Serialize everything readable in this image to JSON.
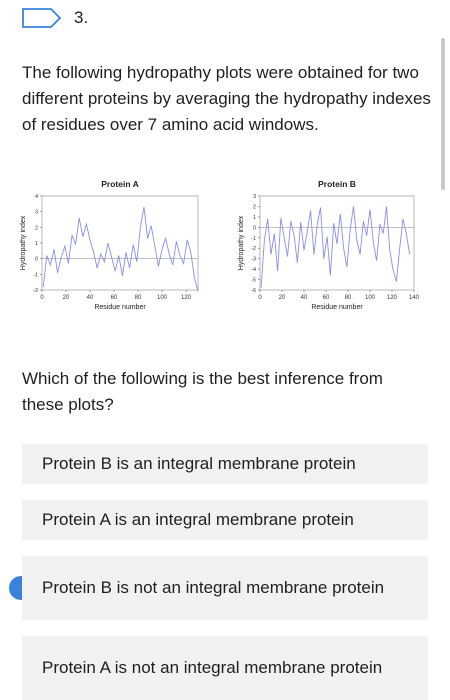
{
  "question": {
    "number": "3.",
    "text": "The following hydropathy plots were obtained for two different proteins by averaging the hydropathy indexes of residues over 7 amino acid windows.",
    "prompt": "Which of the following is the best inference from these plots?"
  },
  "options": [
    {
      "label": "Protein B is an integral membrane protein",
      "selected": false
    },
    {
      "label": "Protein A is an integral membrane protein",
      "selected": false
    },
    {
      "label": "Protein B is not an integral membrane protein",
      "selected": true
    },
    {
      "label": "Protein A is not an integral membrane protein",
      "selected": false
    }
  ],
  "colors": {
    "accent": "#3b82dc",
    "option_bg": "#f1f1f1",
    "plot_line": "#8a8fe6"
  },
  "chart_data": [
    {
      "type": "line",
      "title": "Protein A",
      "xlabel": "Residue number",
      "ylabel": "Hydropathy index",
      "xlim": [
        0,
        130
      ],
      "ylim": [
        -2,
        4
      ],
      "x_ticks": [
        "0",
        "20",
        "40",
        "60",
        "80",
        "100",
        "120"
      ],
      "y_ticks": [
        "4",
        "3",
        "2",
        "1",
        "0",
        "-1",
        "-2"
      ],
      "x": [
        1,
        4,
        7,
        10,
        13,
        16,
        19,
        22,
        25,
        28,
        31,
        34,
        37,
        40,
        43,
        46,
        49,
        52,
        55,
        58,
        61,
        64,
        67,
        70,
        73,
        76,
        79,
        82,
        85,
        88,
        91,
        94,
        97,
        100,
        103,
        106,
        109,
        112,
        115,
        118,
        121,
        124,
        127,
        130
      ],
      "values": [
        -1.8,
        0.2,
        -0.4,
        0.6,
        -0.9,
        0.1,
        0.8,
        -0.3,
        1.5,
        0.9,
        2.6,
        1.4,
        2.2,
        1.2,
        0.4,
        -0.6,
        0.3,
        -0.2,
        1.0,
        0.1,
        -0.8,
        0.2,
        -1.1,
        0.4,
        -0.6,
        0.9,
        -0.2,
        2.0,
        3.3,
        1.3,
        2.1,
        0.8,
        -0.5,
        0.6,
        1.3,
        0.3,
        -0.4,
        1.1,
        0.2,
        -0.3,
        1.2,
        0.4,
        -1.2,
        -2.1
      ]
    },
    {
      "type": "line",
      "title": "Protein B",
      "xlabel": "Residue number",
      "ylabel": "Hydropathy index",
      "xlim": [
        0,
        140
      ],
      "ylim": [
        -6,
        3
      ],
      "x_ticks": [
        "0",
        "20",
        "40",
        "60",
        "80",
        "100",
        "120",
        "140"
      ],
      "y_ticks": [
        "3",
        "2",
        "1",
        "0",
        "-1",
        "-2",
        "-3",
        "-4",
        "-5",
        "-6"
      ],
      "x": [
        1,
        4,
        7,
        10,
        13,
        16,
        19,
        22,
        25,
        28,
        31,
        34,
        37,
        40,
        43,
        46,
        49,
        52,
        55,
        58,
        61,
        64,
        67,
        70,
        73,
        76,
        79,
        82,
        85,
        88,
        91,
        94,
        97,
        100,
        103,
        106,
        109,
        112,
        115,
        118,
        121,
        124,
        127,
        130,
        133,
        136
      ],
      "values": [
        -5.8,
        -1.2,
        0.8,
        -2.6,
        -0.6,
        -4.2,
        0.9,
        -1.0,
        -2.8,
        0.6,
        -0.8,
        -3.4,
        0.5,
        -2.2,
        -0.4,
        1.6,
        -2.6,
        0.2,
        1.9,
        -3.0,
        -0.9,
        -4.6,
        0.4,
        -1.6,
        1.3,
        -2.0,
        -3.8,
        -0.2,
        2.0,
        -1.2,
        -2.6,
        0.6,
        -0.8,
        1.7,
        -1.4,
        -3.2,
        0.3,
        -0.6,
        2.0,
        -2.2,
        -4.1,
        -5.2,
        -2.0,
        0.8,
        -0.6,
        -2.6
      ]
    }
  ]
}
